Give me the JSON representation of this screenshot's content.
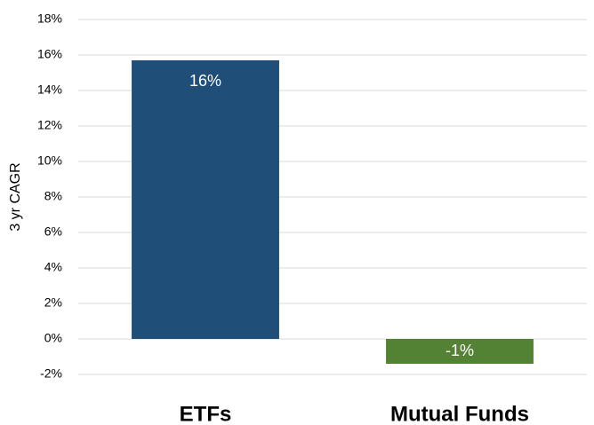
{
  "chart_data": {
    "type": "bar",
    "y_label": "3 yr CAGR",
    "categories": [
      "ETFs",
      "Mutual Funds"
    ],
    "values": [
      15.7,
      -1.4
    ],
    "value_labels": [
      "16%",
      "-1%"
    ],
    "colors": [
      "#1f4e79",
      "#548235"
    ],
    "ylim": [
      -2,
      18
    ],
    "yticks": [
      {
        "value": -2,
        "label": "-2%"
      },
      {
        "value": 0,
        "label": "0%"
      },
      {
        "value": 2,
        "label": "2%"
      },
      {
        "value": 4,
        "label": "4%"
      },
      {
        "value": 6,
        "label": "6%"
      },
      {
        "value": 8,
        "label": "8%"
      },
      {
        "value": 10,
        "label": "10%"
      },
      {
        "value": 12,
        "label": "12%"
      },
      {
        "value": 14,
        "label": "14%"
      },
      {
        "value": 16,
        "label": "16%"
      },
      {
        "value": 18,
        "label": "18%"
      }
    ],
    "grid": true
  }
}
